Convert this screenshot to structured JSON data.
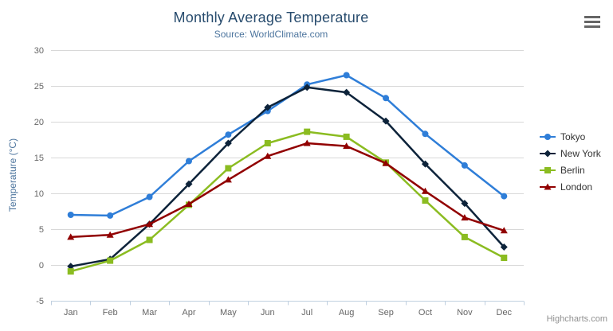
{
  "chart_data": {
    "type": "line",
    "title": "Monthly Average Temperature",
    "subtitle": "Source: WorldClimate.com",
    "xlabel": "",
    "ylabel": "Temperature (°C)",
    "ylim": [
      -5,
      30
    ],
    "tick_interval": 5,
    "grid": true,
    "legend_position": "right",
    "categories": [
      "Jan",
      "Feb",
      "Mar",
      "Apr",
      "May",
      "Jun",
      "Jul",
      "Aug",
      "Sep",
      "Oct",
      "Nov",
      "Dec"
    ],
    "series": [
      {
        "name": "Tokyo",
        "color": "#2f7ed8",
        "marker": "circle",
        "values": [
          7.0,
          6.9,
          9.5,
          14.5,
          18.2,
          21.5,
          25.2,
          26.5,
          23.3,
          18.3,
          13.9,
          9.6
        ]
      },
      {
        "name": "New York",
        "color": "#0d233a",
        "marker": "diamond",
        "values": [
          -0.2,
          0.8,
          5.7,
          11.3,
          17.0,
          22.0,
          24.8,
          24.1,
          20.1,
          14.1,
          8.6,
          2.5
        ]
      },
      {
        "name": "Berlin",
        "color": "#8bbc21",
        "marker": "square",
        "values": [
          -0.9,
          0.6,
          3.5,
          8.4,
          13.5,
          17.0,
          18.6,
          17.9,
          14.3,
          9.0,
          3.9,
          1.0
        ]
      },
      {
        "name": "London",
        "color": "#910000",
        "marker": "triangle",
        "values": [
          3.9,
          4.2,
          5.7,
          8.5,
          11.9,
          15.2,
          17.0,
          16.6,
          14.2,
          10.3,
          6.6,
          4.8
        ]
      }
    ],
    "colors": {
      "title": "#274b6d",
      "subtitle": "#4d759e",
      "axis_labels": "#666666",
      "axis_line": "#c0d0e0",
      "gridline": "#d8d8d8",
      "legend_text": "#333333",
      "credits": "#909090"
    }
  },
  "export_menu": {
    "icon": "hamburger-menu-icon"
  },
  "credits_label": "Highcharts.com"
}
